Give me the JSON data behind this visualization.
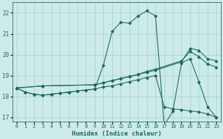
{
  "xlabel": "Humidex (Indice chaleur)",
  "xlim": [
    -0.5,
    23.5
  ],
  "ylim": [
    16.8,
    22.5
  ],
  "bg_color": "#cdeaea",
  "grid_color": "#a0cccc",
  "line_color": "#1a6b5a",
  "series": [
    {
      "x": [
        0,
        1,
        2,
        3,
        4,
        5,
        6,
        7,
        8,
        9,
        10,
        11,
        12,
        13,
        14,
        15,
        16,
        17,
        18,
        19,
        20,
        21,
        22,
        23
      ],
      "y": [
        18.4,
        18.2,
        18.1,
        18.05,
        18.1,
        18.15,
        18.2,
        18.25,
        18.3,
        18.35,
        19.5,
        21.1,
        21.55,
        21.5,
        21.85,
        22.1,
        21.85,
        16.6,
        17.3,
        19.6,
        19.8,
        18.7,
        17.5,
        17.0
      ]
    },
    {
      "x": [
        0,
        1,
        2,
        3,
        4,
        5,
        6,
        7,
        8,
        9,
        10,
        11,
        12,
        13,
        14,
        15,
        16,
        17,
        18,
        19,
        20,
        21,
        22,
        23
      ],
      "y": [
        18.4,
        18.2,
        18.1,
        18.05,
        18.1,
        18.15,
        18.2,
        18.25,
        18.3,
        18.35,
        18.45,
        18.5,
        18.6,
        18.7,
        18.8,
        18.9,
        19.0,
        17.5,
        17.4,
        17.35,
        17.3,
        17.25,
        17.15,
        17.0
      ]
    },
    {
      "x": [
        0,
        3,
        9,
        10,
        11,
        12,
        13,
        14,
        15,
        16,
        19,
        20,
        21,
        22,
        23
      ],
      "y": [
        18.4,
        18.5,
        18.55,
        18.65,
        18.75,
        18.85,
        18.95,
        19.05,
        19.15,
        19.25,
        19.65,
        20.3,
        20.2,
        19.8,
        19.7
      ]
    },
    {
      "x": [
        0,
        3,
        9,
        10,
        11,
        12,
        13,
        14,
        15,
        16,
        19,
        20,
        21,
        22,
        23
      ],
      "y": [
        18.4,
        18.5,
        18.55,
        18.65,
        18.75,
        18.85,
        18.95,
        19.05,
        19.2,
        19.3,
        19.7,
        20.15,
        19.9,
        19.55,
        19.4
      ]
    }
  ],
  "xticks": [
    0,
    1,
    2,
    3,
    4,
    5,
    6,
    7,
    8,
    9,
    10,
    11,
    12,
    13,
    14,
    15,
    16,
    17,
    18,
    19,
    20,
    21,
    22,
    23
  ],
  "yticks": [
    17,
    18,
    19,
    20,
    21,
    22
  ]
}
